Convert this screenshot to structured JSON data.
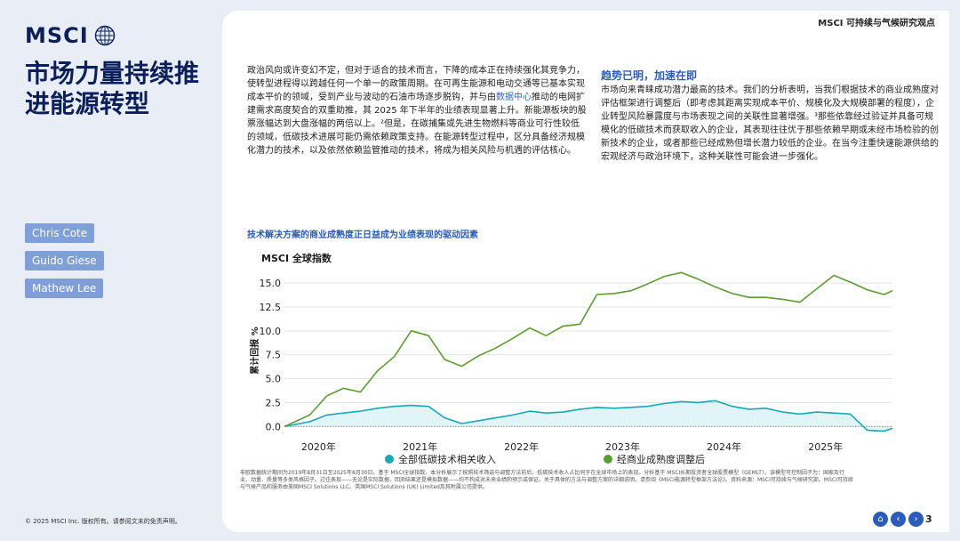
{
  "logo": {
    "text": "MSCI"
  },
  "header": {
    "right_title": "MSCI 可持续与气候研究观点"
  },
  "page_title": "市场力量持续推进能源转型",
  "authors": [
    "Chris Cote",
    "Guido Giese",
    "Mathew Lee"
  ],
  "left_text": {
    "p1": "政治风向或许变幻不定，但对于适合的技术而言，下降的成本正在持续强化其竞争力，使转型进程得以跨越任何一个单一的政策周期。在可再生能源和电动交通等已基本实现成本平价的领域，受到产业与波动的石油市场逐步脱钩，并与由",
    "link": "数据中心",
    "p2": "推动的电网扩建需求高度契合的双重助推，其 2025 年下半年的业绩表现显著上升。新能源板块的股票涨幅达到大盘涨幅的两倍以上。²但是，在碳捕集或先进生物燃料等商业可行性较低的领域，低碳技术进展可能仍需依赖政策支持。在能源转型过程中，区分具备经济规模化潜力的技术，以及依然依赖监管推动的技术，将成为相关风险与机遇的评估核心。"
  },
  "right_section": {
    "title": "趋势已明，加速在即",
    "body": "市场向来青睐成功潜力最高的技术。我们的分析表明，当我们根据技术的商业成熟度对评估框架进行调整后（即考虑其距离实现成本平价、规模化及大规模部署的程度），企业转型风险暴露度与市场表现之间的关联性显著增强。³那些依靠经过验证并具备可规模化的低碳技术而获取收入的企业，其表现往往优于那些依赖早期或未经市场检验的创新技术的企业，或者那些已经成熟但增长潜力较低的企业。在当今注重快速能源供给的宏观经济与政治环境下，这种关联性可能会进一步强化。"
  },
  "chart_data": {
    "type": "line",
    "title": "技术解决方案的商业成熟度正日益成为业绩表现的驱动因素",
    "subtitle": "MSCI 全球指数",
    "ylabel": "累计回报 %",
    "xlabel": "",
    "ylim": [
      -1,
      16.5
    ],
    "yticks": [
      "0.0",
      "2.5",
      "5.0",
      "7.5",
      "10.0",
      "12.5",
      "15.0"
    ],
    "ytick_values": [
      0,
      2.5,
      5,
      7.5,
      10,
      12.5,
      15
    ],
    "xlim": [
      "2019-08-31",
      "2025-08-30"
    ],
    "xticks": [
      "2020年",
      "2021年",
      "2022年",
      "2023年",
      "2024年",
      "2025年"
    ],
    "xtick_dates": [
      "2020-01-01",
      "2021-01-01",
      "2022-01-01",
      "2023-01-01",
      "2024-01-01",
      "2025-01-01"
    ],
    "legend_position": "bottom",
    "series": [
      {
        "name": "全部低碳技术相关收入",
        "color": "#17a9b8",
        "x": [
          "2019-08-31",
          "2019-11-30",
          "2020-01-31",
          "2020-03-31",
          "2020-05-31",
          "2020-07-31",
          "2020-09-30",
          "2020-11-30",
          "2021-01-31",
          "2021-03-31",
          "2021-05-31",
          "2021-07-31",
          "2021-09-30",
          "2021-11-30",
          "2022-01-31",
          "2022-03-31",
          "2022-05-31",
          "2022-07-31",
          "2022-09-30",
          "2022-11-30",
          "2023-01-31",
          "2023-03-31",
          "2023-05-31",
          "2023-07-31",
          "2023-09-30",
          "2023-11-30",
          "2024-01-31",
          "2024-03-31",
          "2024-05-31",
          "2024-07-31",
          "2024-09-30",
          "2024-11-30",
          "2025-01-31",
          "2025-03-31",
          "2025-05-31",
          "2025-07-31",
          "2025-08-30"
        ],
        "values": [
          0.0,
          0.5,
          1.2,
          1.4,
          1.6,
          1.9,
          2.1,
          2.2,
          2.1,
          0.9,
          0.3,
          0.6,
          0.9,
          1.2,
          1.6,
          1.4,
          1.5,
          1.8,
          2.0,
          1.9,
          2.0,
          2.1,
          2.4,
          2.6,
          2.5,
          2.7,
          2.1,
          1.8,
          1.9,
          1.5,
          1.3,
          1.5,
          1.4,
          1.3,
          -0.4,
          -0.5,
          -0.2
        ]
      },
      {
        "name": "经商业成熟度调整后",
        "color": "#5a9e2f",
        "x": [
          "2019-08-31",
          "2019-11-30",
          "2020-01-31",
          "2020-03-31",
          "2020-05-31",
          "2020-07-31",
          "2020-09-30",
          "2020-11-30",
          "2021-01-31",
          "2021-03-31",
          "2021-05-31",
          "2021-07-31",
          "2021-09-30",
          "2021-11-30",
          "2022-01-31",
          "2022-03-31",
          "2022-05-31",
          "2022-07-31",
          "2022-09-30",
          "2022-11-30",
          "2023-01-31",
          "2023-03-31",
          "2023-05-31",
          "2023-07-31",
          "2023-09-30",
          "2023-11-30",
          "2024-01-31",
          "2024-03-31",
          "2024-05-31",
          "2024-07-31",
          "2024-09-30",
          "2024-11-30",
          "2025-01-31",
          "2025-03-31",
          "2025-05-31",
          "2025-07-31",
          "2025-08-30"
        ],
        "values": [
          0.0,
          1.2,
          3.2,
          4.0,
          3.6,
          5.8,
          7.3,
          10.0,
          9.5,
          7.0,
          6.3,
          7.4,
          8.2,
          9.2,
          10.3,
          9.5,
          10.5,
          10.7,
          13.8,
          13.9,
          14.2,
          14.9,
          15.7,
          16.1,
          15.4,
          14.6,
          13.9,
          13.5,
          13.5,
          13.3,
          13.0,
          14.4,
          15.8,
          15.1,
          14.3,
          13.8,
          14.2
        ]
      }
    ]
  },
  "footnote": "非欧数据统计期间为2019年8月31日至2025年8月30日。基于 MSCI全球指数。本分析展示了按照技术筛选与调整方法前后，低碳技术收入占比同于在全球市场上的表现。分析基于 MSCI长期投资者全球股票模型（GEMLT）。该模型可控制因子为：国家及行业、动量、质量等多类风格因子。过往表现——无论是实际数据、回测结果还是模拟数据——均不构成对未来业绩的预示或保证。关于具体的方法与调整方案的详细说明，请参阅《MSCI能源转型框架方法论》。资料来源：MSCI可持续与气候研究部。MSCI可持续与气候产品和服务由美国MSCI Solutions LLC、英国MSCI Solutions (UK) Limited及其附属公司提供。",
  "copyright": "© 2025 MSCI Inc. 版权所有。请参阅文末的免责声明。",
  "nav": {
    "home": "⌂",
    "prev": "‹",
    "next": "›"
  },
  "page_number": "3"
}
